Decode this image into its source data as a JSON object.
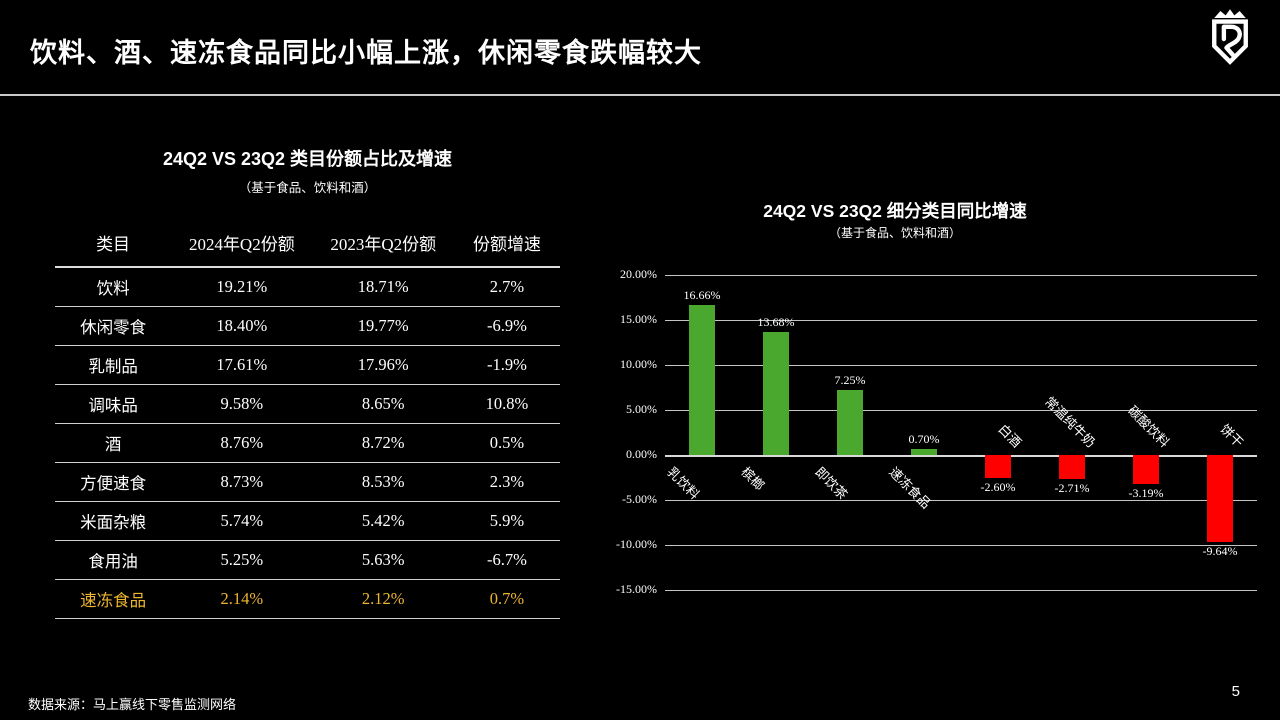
{
  "slide": {
    "title": "饮料、酒、速冻食品同比小幅上涨，休闲零食跌幅较大",
    "source": "数据来源：马上赢线下零售监测网络",
    "page_number": "5"
  },
  "table": {
    "title": "24Q2 VS 23Q2 类目份额占比及增速",
    "subtitle": "（基于食品、饮料和酒）",
    "headers": [
      "类目",
      "2024年Q2份额",
      "2023年Q2份额",
      "份额增速"
    ],
    "rows": [
      {
        "category": "饮料",
        "share_2024": "19.21%",
        "share_2023": "18.71%",
        "growth": "2.7%",
        "highlight": false
      },
      {
        "category": "休闲零食",
        "share_2024": "18.40%",
        "share_2023": "19.77%",
        "growth": "-6.9%",
        "highlight": false
      },
      {
        "category": "乳制品",
        "share_2024": "17.61%",
        "share_2023": "17.96%",
        "growth": "-1.9%",
        "highlight": false
      },
      {
        "category": "调味品",
        "share_2024": "9.58%",
        "share_2023": "8.65%",
        "growth": "10.8%",
        "highlight": false
      },
      {
        "category": "酒",
        "share_2024": "8.76%",
        "share_2023": "8.72%",
        "growth": "0.5%",
        "highlight": false
      },
      {
        "category": "方便速食",
        "share_2024": "8.73%",
        "share_2023": "8.53%",
        "growth": "2.3%",
        "highlight": false
      },
      {
        "category": "米面杂粮",
        "share_2024": "5.74%",
        "share_2023": "5.42%",
        "growth": "5.9%",
        "highlight": false
      },
      {
        "category": "食用油",
        "share_2024": "5.25%",
        "share_2023": "5.63%",
        "growth": "-6.7%",
        "highlight": false
      },
      {
        "category": "速冻食品",
        "share_2024": "2.14%",
        "share_2023": "2.12%",
        "growth": "0.7%",
        "highlight": true
      }
    ],
    "highlight_color": "#EDB52F"
  },
  "chart_data": {
    "type": "bar",
    "title": "24Q2 VS 23Q2 细分类目同比增速",
    "subtitle": "（基于食品、饮料和酒）",
    "categories": [
      "乳饮料",
      "槟榔",
      "即饮茶",
      "速冻食品",
      "白酒",
      "常温纯牛奶",
      "碳酸饮料",
      "饼干"
    ],
    "values": [
      16.66,
      13.68,
      7.25,
      0.7,
      -2.6,
      -2.71,
      -3.19,
      -9.64
    ],
    "data_labels": [
      "16.66%",
      "13.68%",
      "7.25%",
      "0.70%",
      "-2.60%",
      "-2.71%",
      "-3.19%",
      "-9.64%"
    ],
    "ylim": [
      -15,
      20
    ],
    "ytick_step": 5,
    "ytick_labels": [
      "20.00%",
      "15.00%",
      "10.00%",
      "5.00%",
      "0.00%",
      "-5.00%",
      "-10.00%",
      "-15.00%"
    ],
    "positive_color": "#4BA82F",
    "negative_color": "#FF0000",
    "grid": true,
    "legend": false,
    "xlabel": "",
    "ylabel": ""
  }
}
